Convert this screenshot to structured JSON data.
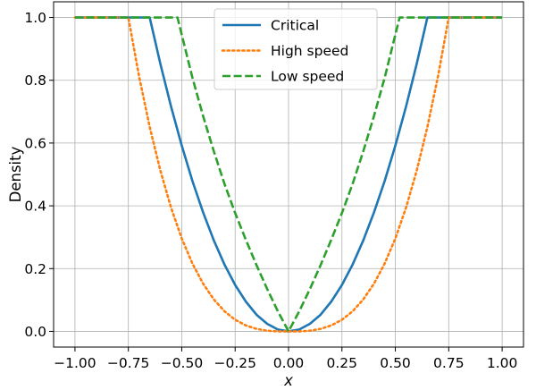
{
  "chart_data": {
    "type": "line",
    "title": "",
    "xlabel": "x",
    "ylabel": "Density",
    "xlim": [
      -1.1,
      1.1
    ],
    "ylim": [
      -0.05,
      1.05
    ],
    "grid": true,
    "legend_position": "top-center",
    "x_ticks": [
      -1.0,
      -0.75,
      -0.5,
      -0.25,
      0.0,
      0.25,
      0.5,
      0.75,
      1.0
    ],
    "x_tick_labels": [
      "−1.00",
      "−0.75",
      "−0.50",
      "−0.25",
      "0.00",
      "0.25",
      "0.50",
      "0.75",
      "1.00"
    ],
    "y_ticks": [
      0.0,
      0.2,
      0.4,
      0.6,
      0.8,
      1.0
    ],
    "y_tick_labels": [
      "0.0",
      "0.2",
      "0.4",
      "0.6",
      "0.8",
      "1.0"
    ],
    "series": [
      {
        "name": "Critical",
        "color": "#1f77b4",
        "style": "solid",
        "x": [
          -1.0,
          -0.9,
          -0.8,
          -0.7,
          -0.65,
          -0.6,
          -0.55,
          -0.5,
          -0.45,
          -0.4,
          -0.35,
          -0.3,
          -0.25,
          -0.2,
          -0.15,
          -0.1,
          -0.05,
          0.0,
          0.05,
          0.1,
          0.15,
          0.2,
          0.25,
          0.3,
          0.35,
          0.4,
          0.45,
          0.5,
          0.55,
          0.6,
          0.65,
          0.7,
          0.8,
          0.9,
          1.0
        ],
        "y": [
          1.0,
          1.0,
          1.0,
          1.0,
          1.0,
          0.852,
          0.716,
          0.592,
          0.479,
          0.379,
          0.29,
          0.213,
          0.148,
          0.095,
          0.053,
          0.024,
          0.006,
          0.0,
          0.006,
          0.024,
          0.053,
          0.095,
          0.148,
          0.213,
          0.29,
          0.379,
          0.479,
          0.592,
          0.716,
          0.852,
          1.0,
          1.0,
          1.0,
          1.0,
          1.0
        ]
      },
      {
        "name": "High speed",
        "color": "#ff7f0e",
        "style": "dotted",
        "x": [
          -1.0,
          -0.9,
          -0.8,
          -0.75,
          -0.7,
          -0.65,
          -0.6,
          -0.55,
          -0.5,
          -0.45,
          -0.4,
          -0.35,
          -0.3,
          -0.25,
          -0.2,
          -0.15,
          -0.1,
          -0.05,
          0.0,
          0.05,
          0.1,
          0.15,
          0.2,
          0.25,
          0.3,
          0.35,
          0.4,
          0.45,
          0.5,
          0.55,
          0.6,
          0.65,
          0.7,
          0.75,
          0.8,
          0.9,
          1.0
        ],
        "y": [
          1.0,
          1.0,
          1.0,
          1.0,
          0.813,
          0.651,
          0.512,
          0.394,
          0.296,
          0.216,
          0.152,
          0.102,
          0.064,
          0.037,
          0.019,
          0.008,
          0.002,
          0.0,
          0.0,
          0.0,
          0.002,
          0.008,
          0.019,
          0.037,
          0.064,
          0.102,
          0.152,
          0.216,
          0.296,
          0.394,
          0.512,
          0.651,
          0.813,
          1.0,
          1.0,
          1.0,
          1.0
        ]
      },
      {
        "name": "Low speed",
        "color": "#2ca02c",
        "style": "dashed",
        "x": [
          -1.0,
          -0.8,
          -0.6,
          -0.52,
          -0.45,
          -0.4,
          -0.35,
          -0.3,
          -0.25,
          -0.2,
          -0.15,
          -0.1,
          -0.05,
          0.0,
          0.05,
          0.1,
          0.15,
          0.2,
          0.25,
          0.3,
          0.35,
          0.4,
          0.45,
          0.52,
          0.6,
          0.8,
          1.0
        ],
        "y": [
          1.0,
          1.0,
          1.0,
          1.0,
          0.808,
          0.686,
          0.574,
          0.47,
          0.377,
          0.292,
          0.211,
          0.135,
          0.064,
          0.0,
          0.064,
          0.135,
          0.211,
          0.292,
          0.377,
          0.47,
          0.574,
          0.686,
          0.808,
          1.0,
          1.0,
          1.0,
          1.0
        ]
      }
    ]
  }
}
